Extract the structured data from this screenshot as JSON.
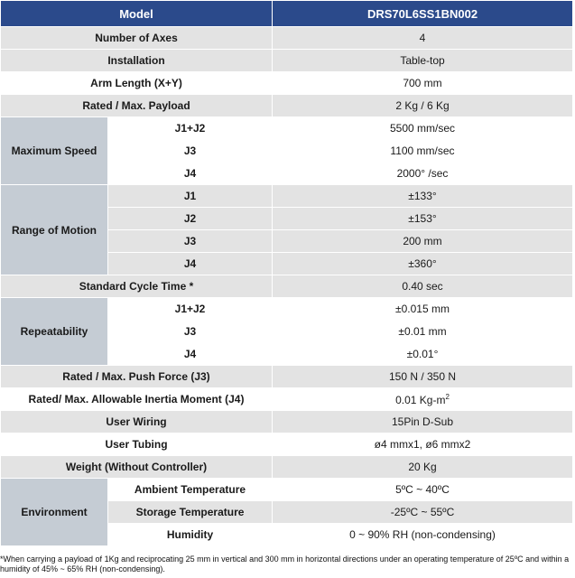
{
  "header": {
    "label": "Model",
    "value": "DRS70L6SS1BN002"
  },
  "rows": {
    "axes": {
      "label": "Number of Axes",
      "value": "4"
    },
    "installation": {
      "label": "Installation",
      "value": "Table-top"
    },
    "arm_length": {
      "label": "Arm Length (X+Y)",
      "value": "700 mm"
    },
    "payload": {
      "label": "Rated / Max. Payload",
      "value": "2 Kg / 6 Kg"
    },
    "max_speed": {
      "label": "Maximum Speed",
      "items": [
        {
          "sub": "J1+J2",
          "value": "5500 mm/sec"
        },
        {
          "sub": "J3",
          "value": "1100 mm/sec"
        },
        {
          "sub": "J4",
          "value": "2000° /sec"
        }
      ]
    },
    "range_of_motion": {
      "label": "Range of Motion",
      "items": [
        {
          "sub": "J1",
          "value": "±133°"
        },
        {
          "sub": "J2",
          "value": "±153°"
        },
        {
          "sub": "J3",
          "value": "200 mm"
        },
        {
          "sub": "J4",
          "value": "±360°"
        }
      ]
    },
    "cycle_time": {
      "label": "Standard Cycle Time *",
      "value": "0.40 sec"
    },
    "repeatability": {
      "label": "Repeatability",
      "items": [
        {
          "sub": "J1+J2",
          "value": "±0.015 mm"
        },
        {
          "sub": "J3",
          "value": "±0.01 mm"
        },
        {
          "sub": "J4",
          "value": "±0.01°"
        }
      ]
    },
    "push_force": {
      "label": "Rated / Max. Push Force (J3)",
      "value": "150 N / 350 N"
    },
    "inertia": {
      "label": "Rated/ Max. Allowable Inertia Moment (J4)",
      "value": "0.01 Kg-m",
      "unit_sup": "2"
    },
    "user_wiring": {
      "label": "User Wiring",
      "value": "15Pin D-Sub"
    },
    "user_tubing": {
      "label": "User Tubing",
      "value": "ø4 mmx1, ø6 mmx2"
    },
    "weight": {
      "label": "Weight (Without Controller)",
      "value": "20 Kg"
    },
    "environment": {
      "label": "Environment",
      "items": [
        {
          "sub": "Ambient Temperature",
          "value": "5ºC ~ 40ºC"
        },
        {
          "sub": "Storage Temperature",
          "value": "-25ºC ~ 55ºC"
        },
        {
          "sub": "Humidity",
          "value": "0 ~ 90% RH (non-condensing)"
        }
      ]
    }
  },
  "footnote": "*When carrying a payload of 1Kg and reciprocating 25 mm in vertical and 300 mm in horizontal directions under an operating temperature of 25ºC and within a humidity of 45% ~ 65% RH (non-condensing)."
}
